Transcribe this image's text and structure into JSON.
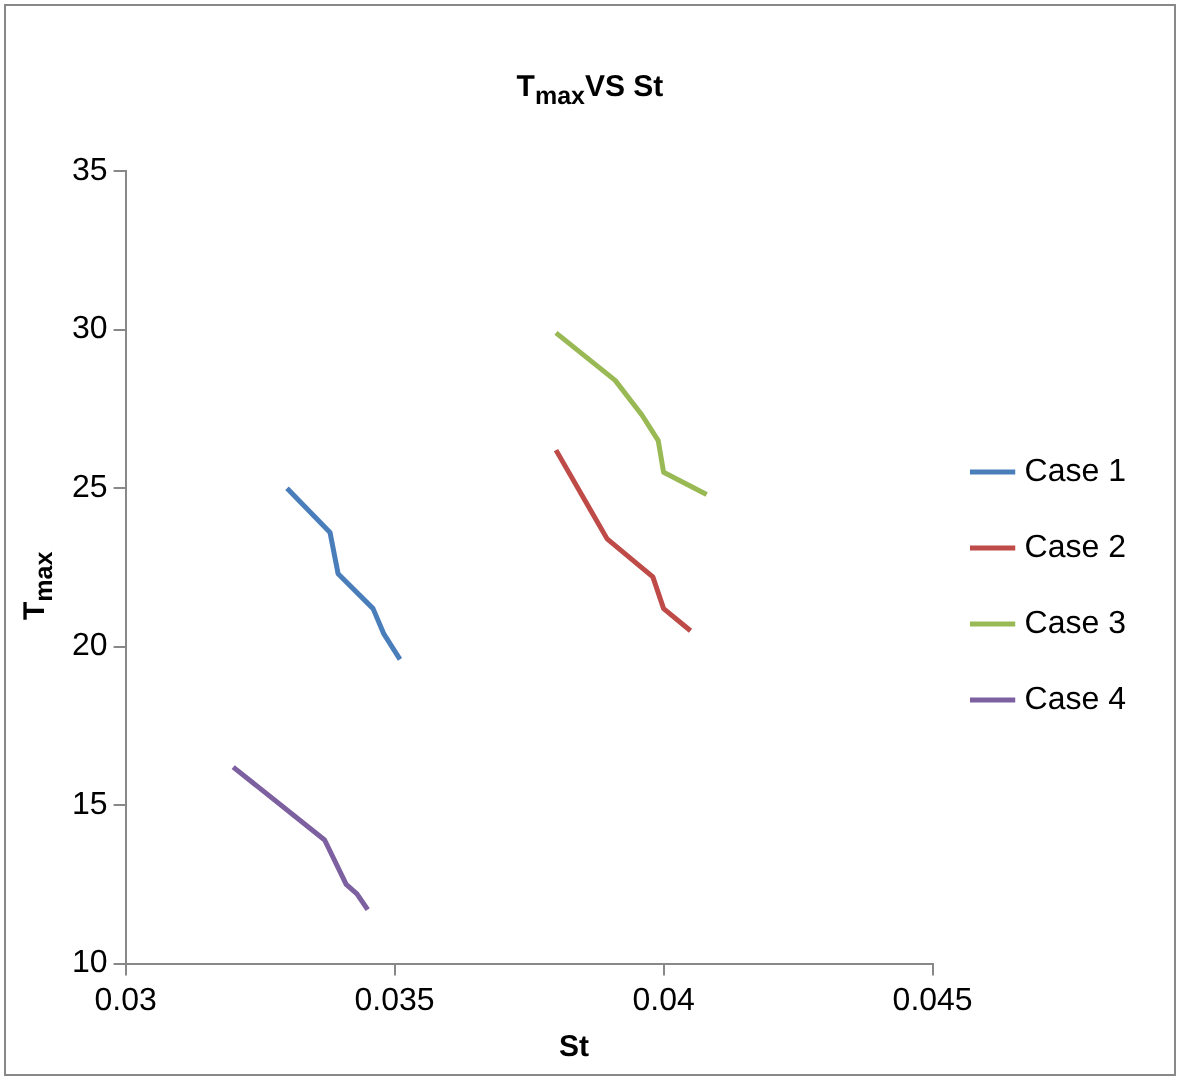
{
  "chart_data": {
    "type": "line",
    "title": "T$_{max}$VS St",
    "xlabel": "St",
    "ylabel": "T$_{max}$",
    "xlim": [
      0.03,
      0.045
    ],
    "xticks": [
      0.03,
      0.035,
      0.04,
      0.045
    ],
    "ylim": [
      10,
      35
    ],
    "yticks": [
      10,
      15,
      20,
      25,
      30,
      35
    ],
    "grid": false,
    "legend": "right",
    "marker": "none",
    "series": [
      {
        "name": "Case 1",
        "color": "#4a7ebb",
        "x": [
          0.033,
          0.0338,
          0.03395,
          0.0346,
          0.0348,
          0.0351
        ],
        "values": [
          25.0,
          23.6,
          22.3,
          21.2,
          20.4,
          19.6
        ]
      },
      {
        "name": "Case 2",
        "color": "#be4b48",
        "x": [
          0.038,
          0.03895,
          0.0398,
          0.04,
          0.0405
        ],
        "values": [
          26.2,
          23.4,
          22.2,
          21.2,
          20.5
        ]
      },
      {
        "name": "Case 3",
        "color": "#98b954",
        "x": [
          0.038,
          0.0391,
          0.0396,
          0.0399,
          0.04,
          0.0408
        ],
        "values": [
          29.9,
          28.4,
          27.3,
          26.5,
          25.5,
          24.8
        ]
      },
      {
        "name": "Case 4",
        "color": "#7d60a0",
        "x": [
          0.032,
          0.0337,
          0.0341,
          0.0343,
          0.0345
        ],
        "values": [
          16.2,
          13.9,
          12.5,
          12.2,
          11.7
        ]
      }
    ]
  }
}
